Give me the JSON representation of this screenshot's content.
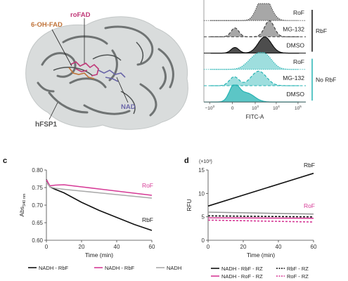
{
  "panel_a": {
    "labels": {
      "oh_fad": "6-OH-FAD",
      "rofad": "roFAD",
      "nad": "NAD",
      "protein": "hFSP1"
    },
    "colors": {
      "oh_fad": "#c0743a",
      "rofad": "#c03878",
      "nad": "#6a66a8",
      "protein": "#555555"
    }
  },
  "panel_b": {
    "type": "histogram-stack",
    "xlabel": "FITC-A",
    "x_ticks": [
      {
        "base": "−10",
        "exp": "3",
        "v": -1000
      },
      {
        "base": "0",
        "exp": "",
        "v": 0
      },
      {
        "base": "10",
        "exp": "3",
        "v": 1000
      },
      {
        "base": "10",
        "exp": "4",
        "v": 10000
      },
      {
        "base": "10",
        "exp": "5",
        "v": 100000
      }
    ],
    "rows": [
      {
        "label": "RoF",
        "group": "RbF",
        "color": "#444444",
        "style": "dotted"
      },
      {
        "label": "MG-132",
        "group": "RbF",
        "color": "#444444",
        "style": "dashed"
      },
      {
        "label": "DMSO",
        "group": "RbF",
        "color": "#111111",
        "style": "solid"
      },
      {
        "label": "RoF",
        "group": "No RbF",
        "color": "#26b3b3",
        "style": "dotted"
      },
      {
        "label": "MG-132",
        "group": "No RbF",
        "color": "#26b3b3",
        "style": "dashed"
      },
      {
        "label": "DMSO",
        "group": "No RbF",
        "color": "#26b3b3",
        "style": "solid"
      }
    ],
    "groups": [
      {
        "name": "RbF",
        "color": "#111111"
      },
      {
        "name": "No RbF",
        "color": "#26b3b3"
      }
    ]
  },
  "chart_data": [
    {
      "panel": "c",
      "type": "line",
      "xlabel": "Time (min)",
      "ylabel": {
        "main": "Abs",
        "sub": "340 nm"
      },
      "xlim": [
        0,
        60
      ],
      "ylim": [
        0.6,
        0.8
      ],
      "x_ticks": [
        0,
        20,
        40,
        60
      ],
      "y_ticks": [
        "0.60",
        "0.65",
        "0.70",
        "0.75",
        "0.80"
      ],
      "series": [
        {
          "name": "NADH - RbF",
          "color": "#111111",
          "x": [
            0,
            2,
            5,
            10,
            20,
            30,
            40,
            50,
            60
          ],
          "y": [
            0.773,
            0.752,
            0.745,
            0.735,
            0.708,
            0.685,
            0.665,
            0.645,
            0.628
          ]
        },
        {
          "name": "NADH - RbF",
          "color": "#d63a96",
          "x": [
            0,
            2,
            5,
            10,
            20,
            30,
            40,
            50,
            60
          ],
          "y": [
            0.772,
            0.755,
            0.757,
            0.758,
            0.752,
            0.746,
            0.74,
            0.734,
            0.728
          ]
        },
        {
          "name": "NADH",
          "color": "#aaaaaa",
          "x": [
            0,
            2,
            5,
            10,
            20,
            30,
            40,
            50,
            60
          ],
          "y": [
            0.765,
            0.752,
            0.748,
            0.745,
            0.74,
            0.735,
            0.73,
            0.725,
            0.72
          ]
        }
      ],
      "annotations": [
        {
          "text": "RoF",
          "color": "#d63a96"
        },
        {
          "text": "RbF",
          "color": "#222222"
        }
      ],
      "legend": "bottom"
    },
    {
      "panel": "d",
      "type": "line",
      "xlabel": "Time (min)",
      "ylabel": "RFU",
      "y_multiplier": "(×10³)",
      "xlim": [
        0,
        60
      ],
      "ylim": [
        0,
        15
      ],
      "x_ticks": [
        0,
        20,
        40,
        60
      ],
      "y_ticks": [
        "0",
        "5",
        "10",
        "15"
      ],
      "series": [
        {
          "name": "NADH - RbF - RZ",
          "color": "#111111",
          "style": "solid",
          "x": [
            0,
            60
          ],
          "y": [
            7.3,
            14.3
          ]
        },
        {
          "name": "NADH - RoF - RZ",
          "color": "#d63a96",
          "style": "solid",
          "x": [
            0,
            60
          ],
          "y": [
            4.8,
            4.7
          ]
        },
        {
          "name": "RbF - RZ",
          "color": "#111111",
          "style": "dashed",
          "x": [
            0,
            60
          ],
          "y": [
            5.2,
            5.0
          ]
        },
        {
          "name": "RoF - RZ",
          "color": "#d63a96",
          "style": "dashed",
          "x": [
            0,
            60
          ],
          "y": [
            4.3,
            3.9
          ]
        },
        {
          "name": "",
          "color": "#999999",
          "style": "solid",
          "x": [
            0,
            60
          ],
          "y": [
            6.0,
            5.6
          ]
        }
      ],
      "annotations": [
        {
          "text": "RbF",
          "color": "#222222"
        },
        {
          "text": "RoF",
          "color": "#d63a96"
        }
      ],
      "legend": "bottom"
    }
  ],
  "panel_letters": {
    "c": "c",
    "d": "d"
  }
}
